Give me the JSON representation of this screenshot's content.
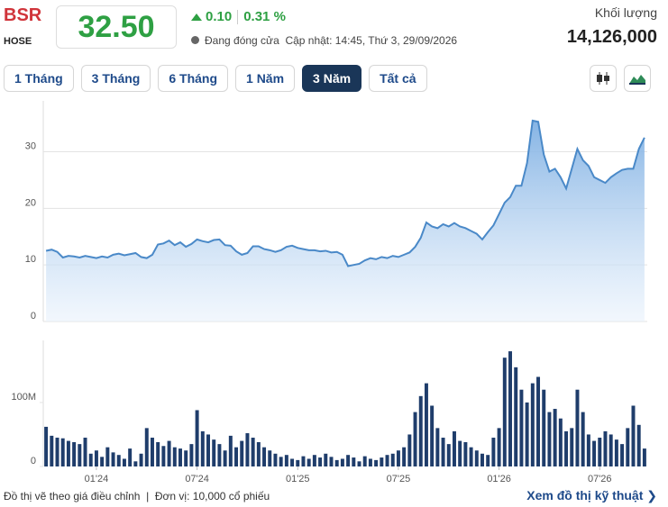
{
  "header": {
    "symbol": "BSR",
    "exchange": "HOSE",
    "price": "32.50",
    "change": "0.10",
    "change_pct": "0.31 %",
    "status": "Đang đóng cửa",
    "updated": "Cập nhật: 14:45, Thứ 3, 29/09/2026",
    "volume_label": "Khối lượng",
    "volume": "14,126,000"
  },
  "tabs": [
    "1 Tháng",
    "3 Tháng",
    "6 Tháng",
    "1 Năm",
    "3 Năm",
    "Tất cả"
  ],
  "active_tab": 4,
  "footer": {
    "note": "Đồ thị vẽ theo giá điều chỉnh",
    "unit": "Đơn vị: 10,000 cổ phiếu",
    "link": "Xem đồ thị kỹ thuật"
  },
  "chart_data": [
    {
      "type": "area",
      "color": "#4a89c8",
      "ylim": [
        0,
        39
      ],
      "yticks": [
        0,
        10,
        20,
        30
      ],
      "grid": true,
      "values": [
        12.5,
        12.7,
        12.3,
        11.3,
        11.6,
        11.5,
        11.3,
        11.6,
        11.4,
        11.2,
        11.5,
        11.3,
        11.8,
        12.0,
        11.7,
        11.9,
        12.1,
        11.4,
        11.2,
        11.8,
        13.6,
        13.8,
        14.3,
        13.5,
        14.0,
        13.2,
        13.7,
        14.5,
        14.2,
        14.0,
        14.4,
        14.5,
        13.5,
        13.4,
        12.4,
        11.8,
        12.1,
        13.3,
        13.3,
        12.8,
        12.6,
        12.3,
        12.6,
        13.2,
        13.4,
        13.0,
        12.8,
        12.6,
        12.6,
        12.4,
        12.5,
        12.2,
        12.3,
        11.8,
        9.8,
        10.0,
        10.2,
        10.8,
        11.2,
        11.0,
        11.4,
        11.2,
        11.6,
        11.4,
        11.8,
        12.2,
        13.2,
        14.8,
        17.5,
        16.8,
        16.5,
        17.2,
        16.8,
        17.4,
        16.8,
        16.5,
        16.0,
        15.5,
        14.5,
        15.8,
        17.0,
        19.0,
        21.0,
        22.0,
        24.0,
        24.0,
        28.0,
        35.5,
        35.3,
        29.5,
        26.5,
        27.0,
        25.5,
        23.5,
        27.0,
        30.5,
        28.5,
        27.5,
        25.5,
        25.0,
        24.5,
        25.5,
        26.2,
        26.8,
        27.0,
        27.0,
        30.5,
        32.5
      ]
    },
    {
      "type": "bar",
      "color": "#1f3d6b",
      "ylim": [
        0,
        197
      ],
      "yticks": [
        0,
        {
          "value": 100,
          "label": "100M"
        }
      ],
      "grid": false,
      "categories": [
        null,
        null,
        null,
        null,
        null,
        null,
        null,
        null,
        null,
        "01'24",
        null,
        null,
        null,
        null,
        null,
        null,
        null,
        null,
        null,
        null,
        null,
        null,
        null,
        null,
        null,
        null,
        null,
        "07'24",
        null,
        null,
        null,
        null,
        null,
        null,
        null,
        null,
        null,
        null,
        null,
        null,
        null,
        null,
        null,
        null,
        null,
        "01'25",
        null,
        null,
        null,
        null,
        null,
        null,
        null,
        null,
        null,
        null,
        null,
        null,
        null,
        null,
        null,
        null,
        null,
        "07'25",
        null,
        null,
        null,
        null,
        null,
        null,
        null,
        null,
        null,
        null,
        null,
        null,
        null,
        null,
        null,
        null,
        null,
        "01'26",
        null,
        null,
        null,
        null,
        null,
        null,
        null,
        null,
        null,
        null,
        null,
        null,
        null,
        null,
        null,
        null,
        null,
        "07'26",
        null,
        null,
        null,
        null,
        null,
        null,
        null,
        null
      ],
      "values": [
        62,
        48,
        45,
        44,
        40,
        38,
        35,
        45,
        20,
        25,
        15,
        30,
        22,
        18,
        12,
        28,
        8,
        20,
        60,
        45,
        38,
        32,
        40,
        30,
        28,
        25,
        35,
        88,
        55,
        50,
        42,
        35,
        25,
        48,
        30,
        40,
        52,
        45,
        38,
        30,
        25,
        20,
        15,
        18,
        12,
        10,
        16,
        12,
        18,
        14,
        20,
        15,
        10,
        12,
        18,
        14,
        8,
        16,
        12,
        10,
        14,
        18,
        20,
        25,
        30,
        50,
        85,
        110,
        130,
        95,
        60,
        45,
        35,
        55,
        40,
        38,
        30,
        25,
        20,
        18,
        45,
        60,
        170,
        180,
        155,
        120,
        100,
        130,
        140,
        120,
        85,
        90,
        75,
        55,
        60,
        120,
        85,
        50,
        40,
        45,
        55,
        50,
        42,
        35,
        60,
        95,
        65,
        28
      ]
    }
  ]
}
